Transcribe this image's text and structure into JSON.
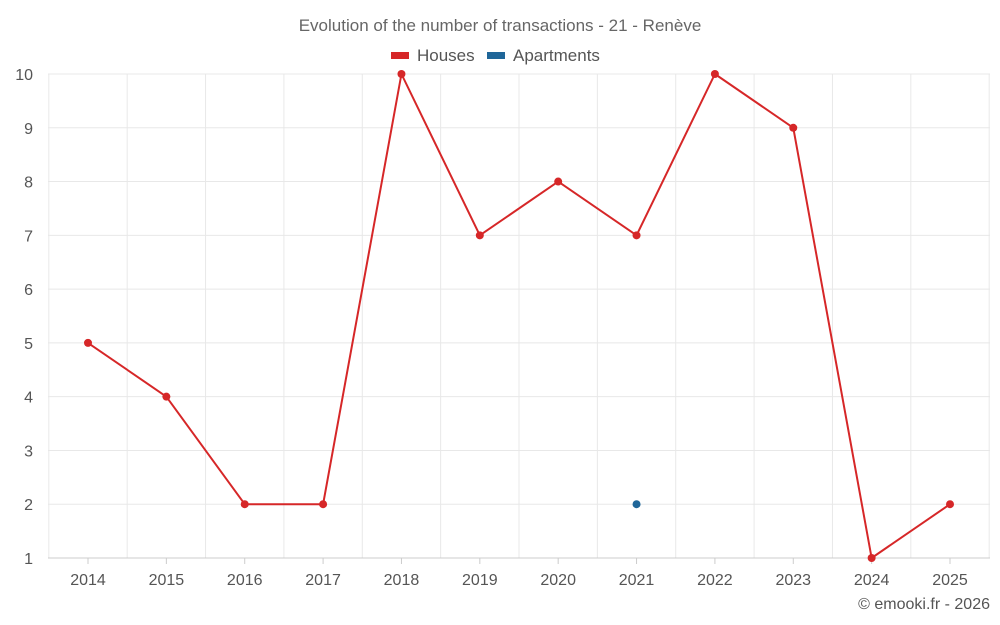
{
  "title": "Evolution of the number of transactions - 21 - Renève",
  "credit": "© emooki.fr - 2026",
  "chart_data": {
    "type": "line",
    "title": "Evolution of the number of transactions - 21 - Renève",
    "x": [
      "2014",
      "2015",
      "2016",
      "2017",
      "2018",
      "2019",
      "2020",
      "2021",
      "2022",
      "2023",
      "2024",
      "2025"
    ],
    "ylim": [
      1,
      10
    ],
    "yticks": [
      1,
      2,
      3,
      4,
      5,
      6,
      7,
      8,
      9,
      10
    ],
    "grid": true,
    "legend_position": "top-center",
    "series": [
      {
        "name": "Houses",
        "color": "#d62728",
        "values": [
          5,
          4,
          2,
          2,
          10,
          7,
          8,
          7,
          10,
          9,
          1,
          2
        ]
      },
      {
        "name": "Apartments",
        "color": "#1f6699",
        "values": [
          null,
          null,
          null,
          null,
          null,
          null,
          null,
          2,
          null,
          null,
          null,
          null
        ]
      }
    ]
  }
}
